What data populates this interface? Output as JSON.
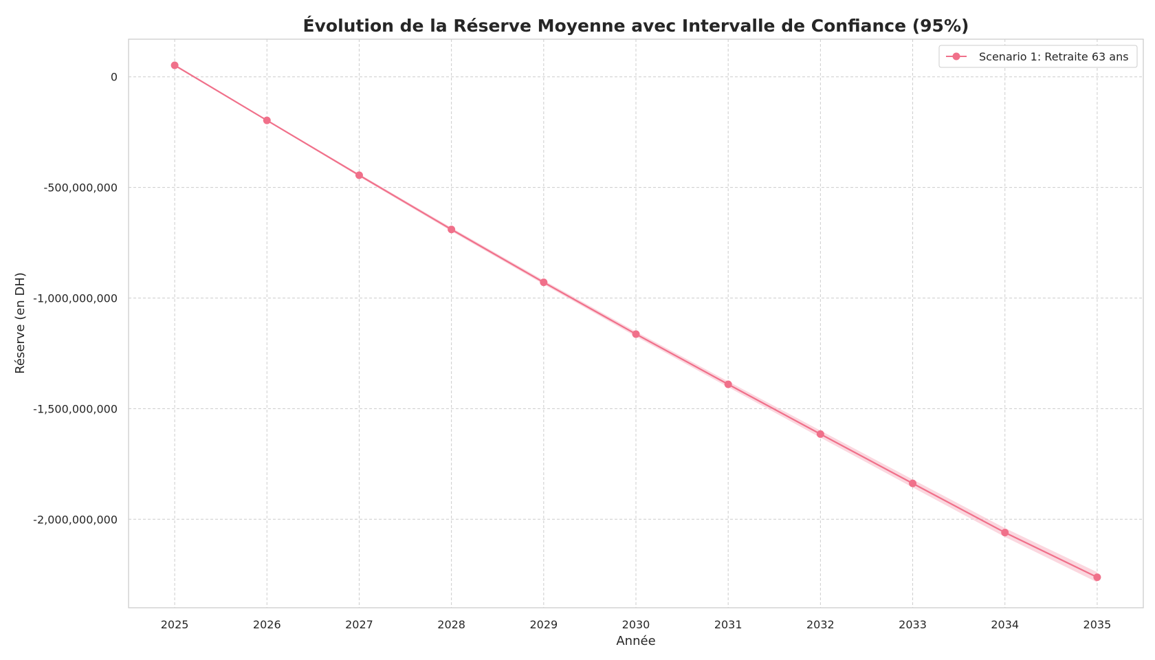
{
  "chart_data": {
    "type": "line",
    "title": "Évolution de la Réserve Moyenne avec Intervalle de Confiance (95%)",
    "xlabel": "Année",
    "ylabel": "Réserve (en DH)",
    "x": [
      2025,
      2026,
      2027,
      2028,
      2029,
      2030,
      2031,
      2032,
      2033,
      2034,
      2035
    ],
    "x_tick_labels": [
      "2025",
      "2026",
      "2027",
      "2028",
      "2029",
      "2030",
      "2031",
      "2032",
      "2033",
      "2034",
      "2035"
    ],
    "y_ticks": [
      0,
      -500000000,
      -1000000000,
      -1500000000,
      -2000000000
    ],
    "y_tick_labels": [
      "0",
      "-500,000,000",
      "-1,000,000,000",
      "-1,500,000,000",
      "-2,000,000,000"
    ],
    "xlim": [
      2024.5,
      2035.5
    ],
    "ylim": [
      -2400000000,
      170000000
    ],
    "grid": true,
    "legend_position": "top-right",
    "series": [
      {
        "name": "Scenario 1: Retraite 63 ans",
        "color": "#f0708a",
        "band_color": "#f7b6c5",
        "marker": "circle",
        "values": [
          52000000,
          -197000000,
          -445000000,
          -690000000,
          -929000000,
          -1163000000,
          -1390000000,
          -1615000000,
          -1838000000,
          -2060000000,
          -2262000000
        ],
        "ci_lower": [
          50000000,
          -200000000,
          -451000000,
          -698000000,
          -938000000,
          -1174000000,
          -1403000000,
          -1631000000,
          -1856000000,
          -2080000000,
          -2285000000
        ],
        "ci_upper": [
          54000000,
          -194000000,
          -439000000,
          -682000000,
          -920000000,
          -1152000000,
          -1377000000,
          -1599000000,
          -1820000000,
          -2040000000,
          -2239000000
        ]
      }
    ]
  }
}
